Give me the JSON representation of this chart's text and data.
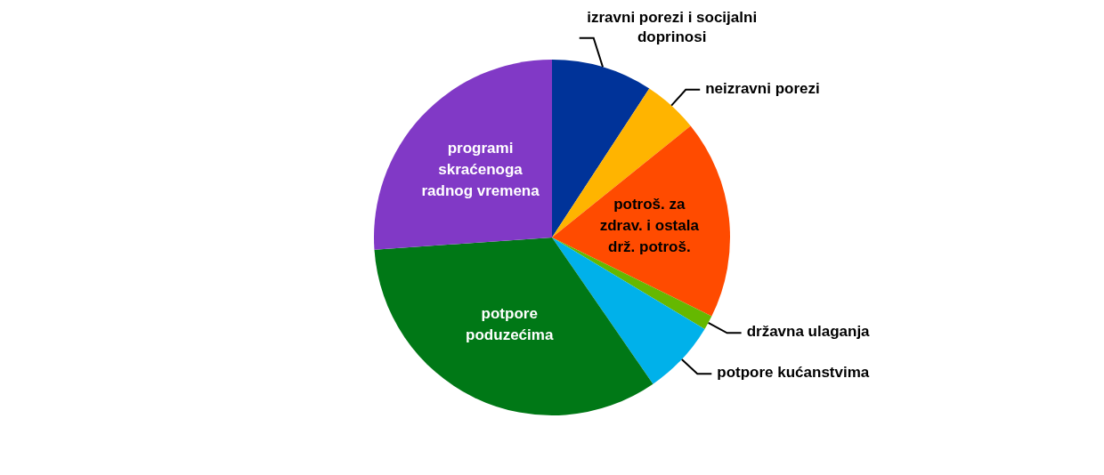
{
  "chart_data": {
    "type": "pie",
    "categories": [
      "izravni porezi i socijalni doprinosi",
      "neizravni porezi",
      "potroš. za zdrav. i ostala drž. potroš.",
      "državna ulaganja",
      "potpore kućanstvima",
      "potpore poduzećima",
      "programi skraćenoga radnog vremena"
    ],
    "values": [
      9.2,
      5.0,
      18.1,
      1.3,
      6.8,
      33.5,
      26.1
    ],
    "colors": [
      "#003399",
      "#ffb400",
      "#ff4b00",
      "#65b800",
      "#00b1ea",
      "#007816",
      "#8139c6"
    ],
    "legend": false
  }
}
